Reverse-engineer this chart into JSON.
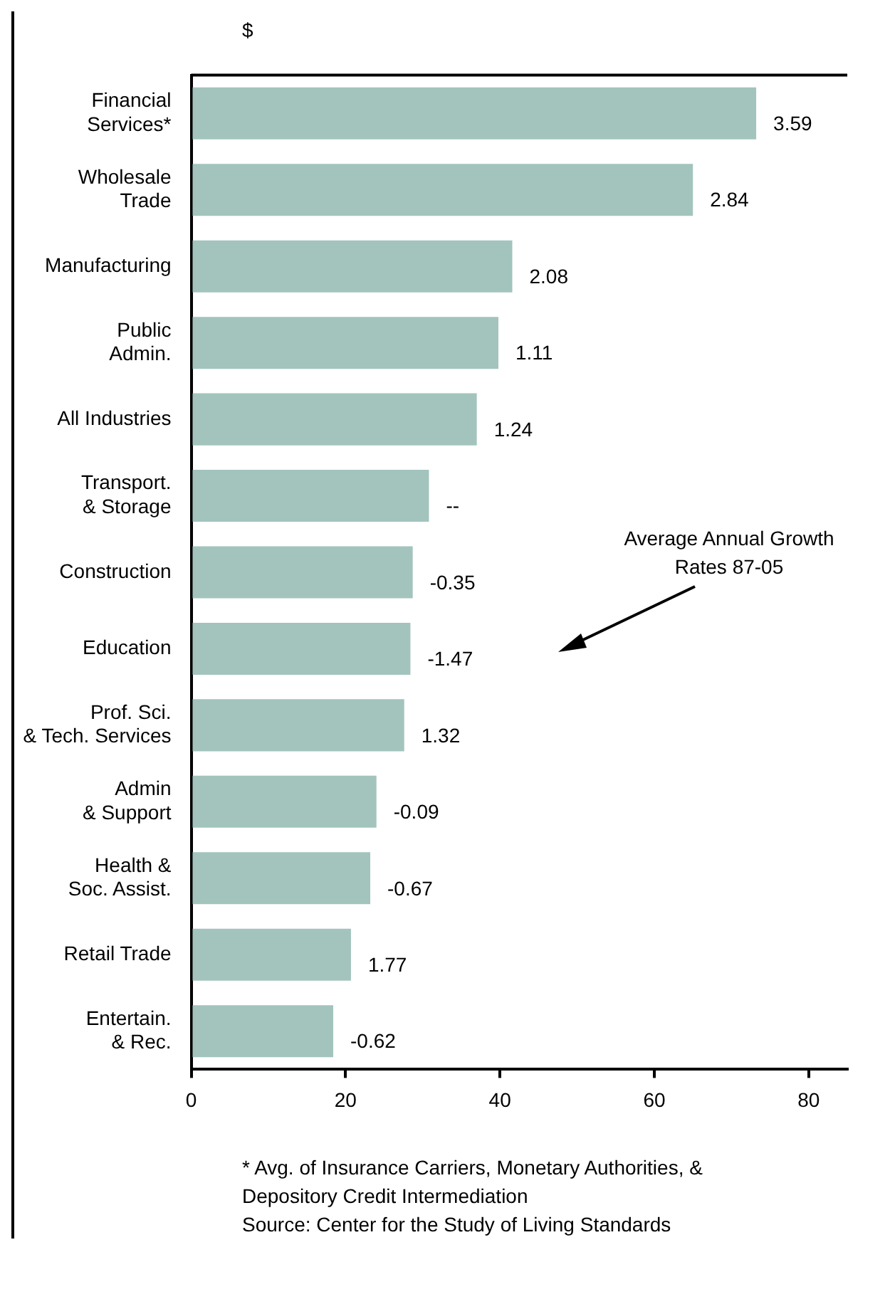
{
  "chart_data": {
    "type": "bar",
    "orientation": "horizontal",
    "xlabel": "$",
    "categories": [
      "Financial\nServices*",
      "Wholesale\nTrade",
      "Manufacturing",
      "Public\nAdmin.",
      "All Industries",
      "Transport.\n& Storage",
      "Construction",
      "Education",
      "Prof. Sci.\n& Tech. Services",
      "Admin\n& Support",
      "Health &\nSoc. Assist.",
      "Retail Trade",
      "Entertain.\n& Rec."
    ],
    "values": [
      73.2,
      65.0,
      41.6,
      39.8,
      37.0,
      30.8,
      28.7,
      28.4,
      27.6,
      24.0,
      23.2,
      20.7,
      18.4
    ],
    "color": "#a2c4bd",
    "xlim": [
      0,
      85
    ],
    "xticks": [
      0,
      20,
      40,
      60,
      80
    ],
    "grid": false,
    "legend": false,
    "annotations": [
      "3.59",
      "2.84",
      "2.08",
      "1.11",
      "1.24",
      "--",
      "-0.35",
      "-1.47",
      "1.32",
      "-0.09",
      "-0.67",
      "1.77",
      "-0.62",
      "Average Annual Growth Rates 87-05",
      "* Avg. of Insurance Carriers, Monetary Authorities, & Depository Credit Intermediation",
      "Source: Center for the Study of Living Standards"
    ]
  }
}
